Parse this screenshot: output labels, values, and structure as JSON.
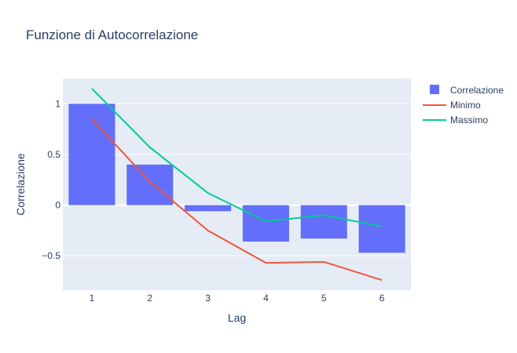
{
  "chart_data": {
    "type": "bar",
    "title": "Funzione di Autocorrelazione",
    "xlabel": "Lag",
    "ylabel": "Correlazione",
    "x": [
      1,
      2,
      3,
      4,
      5,
      6
    ],
    "x_tick_labels": [
      "1",
      "2",
      "3",
      "4",
      "5",
      "6"
    ],
    "y_ticks": [
      1,
      0.5,
      0,
      -0.5
    ],
    "y_tick_labels": [
      "1",
      "0.5",
      "0",
      "−0.5"
    ],
    "ylim": [
      -0.84,
      1.25
    ],
    "xlim": [
      0.5,
      6.5
    ],
    "grid": true,
    "legend_position": "top-right",
    "series": [
      {
        "name": "Correlazione",
        "kind": "bar",
        "color": "#636efa",
        "values": [
          1.0,
          0.4,
          -0.06,
          -0.36,
          -0.33,
          -0.47
        ]
      },
      {
        "name": "Minimo",
        "kind": "line",
        "color": "#ef553b",
        "values": [
          0.85,
          0.23,
          -0.25,
          -0.57,
          -0.56,
          -0.74
        ]
      },
      {
        "name": "Massimo",
        "kind": "line",
        "color": "#00cc96",
        "values": [
          1.15,
          0.57,
          0.12,
          -0.16,
          -0.1,
          -0.21
        ]
      }
    ]
  }
}
